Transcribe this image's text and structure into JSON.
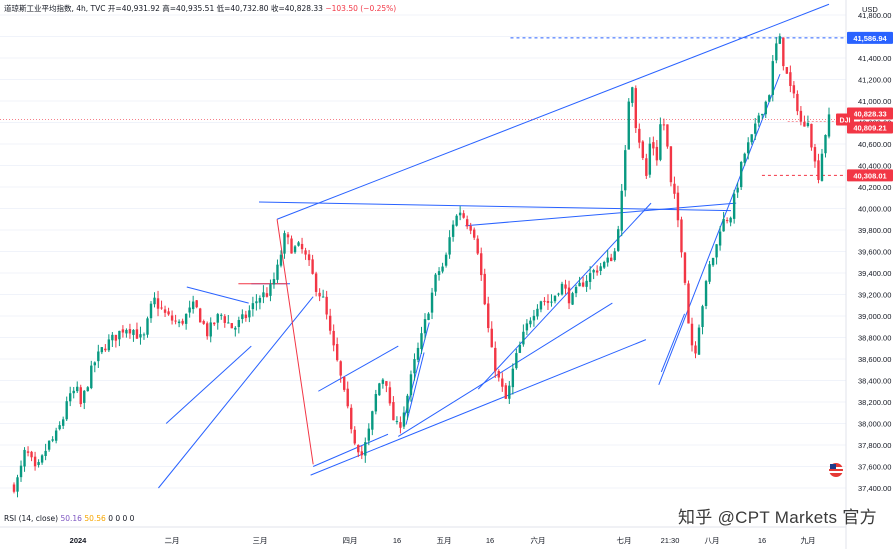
{
  "header": {
    "title": "道琼斯工业平均指数, 4h, TVC",
    "open": "开=40,931.92",
    "high": "高=40,935.51",
    "low": "低=40,732.80",
    "close": "收=40,828.33",
    "change": "−103.50 (−0.25%)"
  },
  "rsi_label": {
    "name": "RSI (14, close)",
    "v1": "50.16",
    "v2": "50.56",
    "zeros": "0 0 0 0"
  },
  "currency": "USD",
  "watermark": "知乎 @CPT Markets 官方",
  "chart_data": {
    "type": "candlestick",
    "symbol": "DJI",
    "timeframe": "4h",
    "ylim": [
      37300,
      41900
    ],
    "y_ticks": [
      37400,
      37600,
      37800,
      38000,
      38200,
      38400,
      38600,
      38800,
      39000,
      39200,
      39400,
      39600,
      39800,
      40000,
      40200,
      40400,
      40600,
      40800,
      41000,
      41200,
      41400,
      41600,
      41800
    ],
    "y_tick_labels": [
      "37,400.00",
      "37,600.00",
      "37,800.00",
      "38,000.00",
      "38,200.00",
      "38,400.00",
      "38,600.00",
      "38,800.00",
      "39,000.00",
      "39,200.00",
      "39,400.00",
      "39,600.00",
      "39,800.00",
      "40,000.00",
      "40,200.00",
      "40,400.00",
      "40,600.00",
      "40,800.00",
      "41,000.00",
      "41,200.00",
      "41,400.00",
      "41,600.00",
      "41,800.00"
    ],
    "x_tick_labels": [
      "2024",
      "二月",
      "三月",
      "四月",
      "16",
      "五月",
      "16",
      "六月",
      "七月",
      "21:30",
      "八月",
      "16",
      "九月"
    ],
    "price_labels": [
      {
        "text": "41,586.94",
        "value": 41586.94,
        "color": "#2962ff"
      },
      {
        "text": "40,828.33",
        "value": 40828.33,
        "color": "#f23645"
      },
      {
        "text": "40,809.21",
        "value": 40809.21,
        "color": "#f23645"
      },
      {
        "text": "40,308.01",
        "value": 40308.01,
        "color": "#f23645"
      }
    ],
    "symbol_tag": "DJI",
    "last_price": 40828.33,
    "up_color": "#089981",
    "down_color": "#f23645",
    "line_color": "#2962ff",
    "drawn_line_color": "#f23645",
    "anchors": [
      [
        0,
        37420
      ],
      [
        4,
        37500
      ],
      [
        8,
        37720
      ],
      [
        12,
        37700
      ],
      [
        16,
        37550
      ],
      [
        20,
        37610
      ],
      [
        26,
        37800
      ],
      [
        32,
        37870
      ],
      [
        38,
        38040
      ],
      [
        42,
        38300
      ],
      [
        44,
        38220
      ],
      [
        48,
        38340
      ],
      [
        52,
        38160
      ],
      [
        56,
        38340
      ],
      [
        62,
        38560
      ],
      [
        70,
        38720
      ],
      [
        78,
        38800
      ],
      [
        86,
        38900
      ],
      [
        92,
        38880
      ],
      [
        100,
        38760
      ],
      [
        108,
        39160
      ],
      [
        118,
        39000
      ],
      [
        128,
        38920
      ],
      [
        140,
        39100
      ],
      [
        150,
        38840
      ],
      [
        160,
        39020
      ],
      [
        170,
        38880
      ],
      [
        180,
        39000
      ],
      [
        190,
        39180
      ],
      [
        198,
        39220
      ],
      [
        204,
        39420
      ],
      [
        210,
        39740
      ],
      [
        216,
        39620
      ],
      [
        222,
        39640
      ],
      [
        228,
        39500
      ],
      [
        234,
        39280
      ],
      [
        240,
        39140
      ],
      [
        246,
        38780
      ],
      [
        252,
        38500
      ],
      [
        258,
        38150
      ],
      [
        264,
        37860
      ],
      [
        270,
        37700
      ],
      [
        276,
        37960
      ],
      [
        282,
        38350
      ],
      [
        288,
        38460
      ],
      [
        292,
        38100
      ],
      [
        298,
        37940
      ],
      [
        304,
        38200
      ],
      [
        310,
        38540
      ],
      [
        316,
        38800
      ],
      [
        322,
        39100
      ],
      [
        328,
        39400
      ],
      [
        334,
        39480
      ],
      [
        340,
        39860
      ],
      [
        346,
        39980
      ],
      [
        352,
        39860
      ],
      [
        356,
        39820
      ],
      [
        360,
        39600
      ],
      [
        364,
        39200
      ],
      [
        370,
        38680
      ],
      [
        376,
        38400
      ],
      [
        382,
        38200
      ],
      [
        388,
        38560
      ],
      [
        394,
        38780
      ],
      [
        400,
        38980
      ],
      [
        408,
        39160
      ],
      [
        416,
        39120
      ],
      [
        424,
        39300
      ],
      [
        432,
        39140
      ],
      [
        440,
        39300
      ],
      [
        448,
        39400
      ],
      [
        454,
        39460
      ],
      [
        460,
        39500
      ],
      [
        466,
        39600
      ],
      [
        470,
        40000
      ],
      [
        472,
        40200
      ],
      [
        474,
        40500
      ],
      [
        476,
        40860
      ],
      [
        478,
        41300
      ],
      [
        480,
        41120
      ],
      [
        482,
        40800
      ],
      [
        486,
        40580
      ],
      [
        490,
        40260
      ],
      [
        494,
        40700
      ],
      [
        498,
        40420
      ],
      [
        502,
        40860
      ],
      [
        506,
        40700
      ],
      [
        508,
        40280
      ],
      [
        512,
        40100
      ],
      [
        516,
        39800
      ],
      [
        520,
        39400
      ],
      [
        524,
        38800
      ],
      [
        528,
        38660
      ],
      [
        532,
        39000
      ],
      [
        536,
        39240
      ],
      [
        540,
        39500
      ],
      [
        544,
        39600
      ],
      [
        548,
        39860
      ],
      [
        552,
        39900
      ],
      [
        556,
        39950
      ],
      [
        562,
        40280
      ],
      [
        566,
        40500
      ],
      [
        570,
        40600
      ],
      [
        574,
        40700
      ],
      [
        578,
        40900
      ],
      [
        582,
        40960
      ],
      [
        586,
        41100
      ],
      [
        588,
        41300
      ],
      [
        590,
        41500
      ],
      [
        594,
        41560
      ],
      [
        596,
        41400
      ],
      [
        600,
        41200
      ],
      [
        604,
        41040
      ],
      [
        608,
        40940
      ],
      [
        612,
        40700
      ],
      [
        616,
        40860
      ],
      [
        620,
        40460
      ],
      [
        624,
        40310
      ],
      [
        628,
        40650
      ],
      [
        632,
        40828.33
      ]
    ]
  }
}
